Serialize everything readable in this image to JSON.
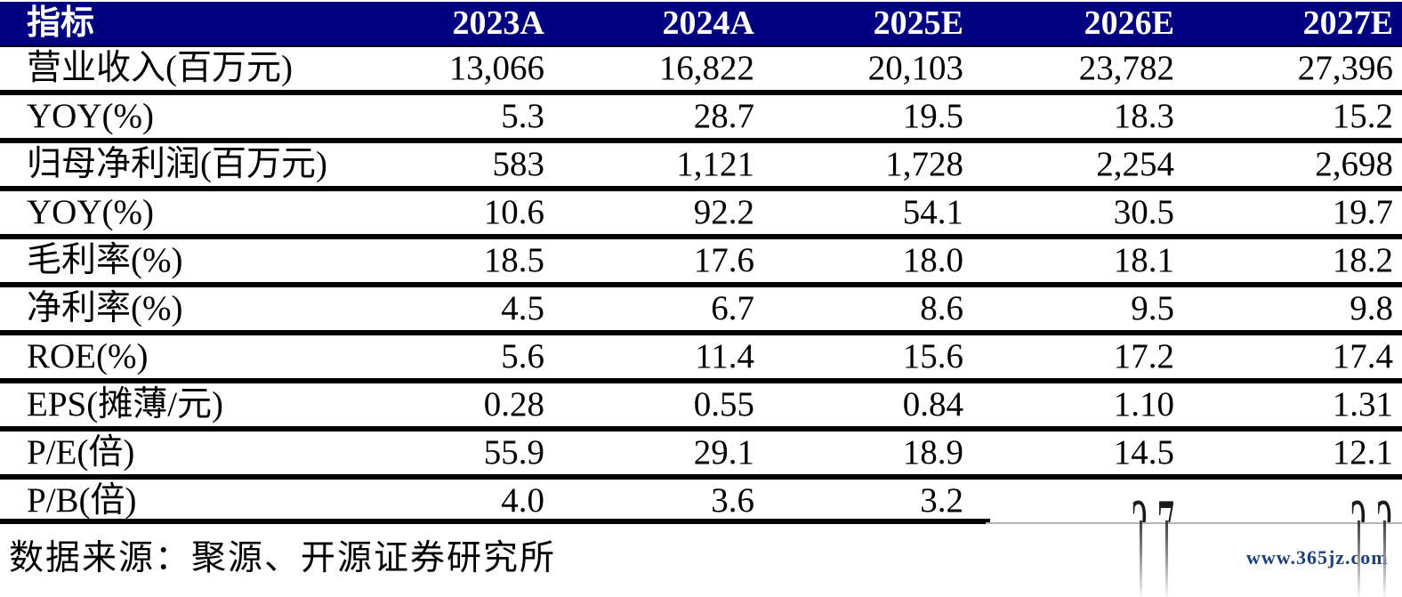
{
  "table": {
    "header": {
      "metric_label": "指标",
      "columns": [
        "2023A",
        "2024A",
        "2025E",
        "2026E",
        "2027E"
      ],
      "background": "#000080",
      "text_color": "#ffffff"
    },
    "rows": [
      {
        "label": "营业收入(百万元)",
        "values": [
          "13,066",
          "16,822",
          "20,103",
          "23,782",
          "27,396"
        ]
      },
      {
        "label": "YOY(%)",
        "values": [
          "5.3",
          "28.7",
          "19.5",
          "18.3",
          "15.2"
        ]
      },
      {
        "label": "归母净利润(百万元)",
        "values": [
          "583",
          "1,121",
          "1,728",
          "2,254",
          "2,698"
        ]
      },
      {
        "label": "YOY(%)",
        "values": [
          "10.6",
          "92.2",
          "54.1",
          "30.5",
          "19.7"
        ]
      },
      {
        "label": "毛利率(%)",
        "values": [
          "18.5",
          "17.6",
          "18.0",
          "18.1",
          "18.2"
        ]
      },
      {
        "label": "净利率(%)",
        "values": [
          "4.5",
          "6.7",
          "8.6",
          "9.5",
          "9.8"
        ]
      },
      {
        "label": "ROE(%)",
        "values": [
          "5.6",
          "11.4",
          "15.6",
          "17.2",
          "17.4"
        ]
      },
      {
        "label": "EPS(摊薄/元)",
        "values": [
          "0.28",
          "0.55",
          "0.84",
          "1.10",
          "1.31"
        ]
      },
      {
        "label": "P/E(倍)",
        "values": [
          "55.9",
          "29.1",
          "18.9",
          "14.5",
          "12.1"
        ]
      },
      {
        "label": "P/B(倍)",
        "values": [
          "4.0",
          "3.6",
          "3.2",
          "2.7",
          "2.2"
        ],
        "note": "last two values partially cut off by vertical smear artifact"
      }
    ]
  },
  "footer": {
    "source_text": "数据来源：聚源、开源证券研究所"
  },
  "watermark": {
    "text": "www.365jz.com",
    "color": "#1d4079"
  }
}
